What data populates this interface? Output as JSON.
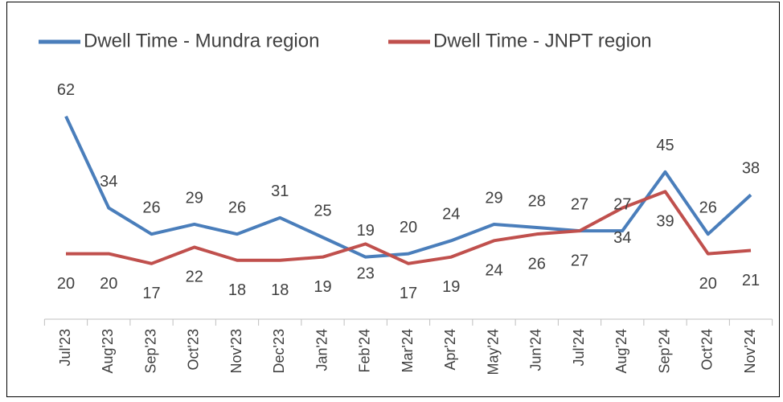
{
  "chart_data": {
    "type": "line",
    "categories": [
      "Jul'23",
      "Aug'23",
      "Sep'23",
      "Oct'23",
      "Nov'23",
      "Dec'23",
      "Jan'24",
      "Feb'24",
      "Mar'24",
      "Apr'24",
      "May'24",
      "Jun'24",
      "Jul'24",
      "Aug'24",
      "Sep'24",
      "Oct'24",
      "Nov'24"
    ],
    "series": [
      {
        "name": "Dwell Time - Mundra region",
        "color": "#4a7ebb",
        "values": [
          62,
          34,
          26,
          29,
          26,
          31,
          25,
          19,
          20,
          24,
          29,
          28,
          27,
          27,
          45,
          26,
          38
        ]
      },
      {
        "name": "Dwell Time - JNPT region",
        "color": "#c0504d",
        "values": [
          20,
          20,
          17,
          22,
          18,
          18,
          19,
          23,
          17,
          19,
          24,
          26,
          27,
          34,
          39,
          20,
          21
        ]
      }
    ],
    "legend": "top"
  }
}
